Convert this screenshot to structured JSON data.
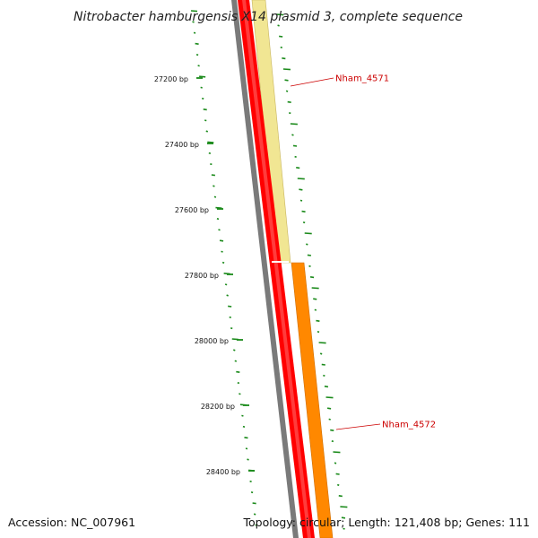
{
  "title": "Nitrobacter hamburgensis X14 plasmid 3, complete sequence",
  "footer": {
    "accession": "Accession: NC_007961",
    "summary": "Topology: circular; Length: 121,408 bp; Genes: 111"
  },
  "ticks": [
    "27200 bp",
    "27400 bp",
    "27600 bp",
    "27800 bp",
    "28000 bp",
    "28200 bp",
    "28400 bp"
  ],
  "genes": [
    {
      "name": "Nham_4571",
      "color": "#f1e693",
      "edge": "#c8b560"
    },
    {
      "name": "Nham_4572",
      "color": "#ff8800",
      "edge": "#d06e00"
    }
  ],
  "colors": {
    "backbone": "#7a7a7a",
    "cds_track": "#ff0000",
    "gc_plot": "#1a8a1a",
    "label_line": "#cc0000"
  }
}
